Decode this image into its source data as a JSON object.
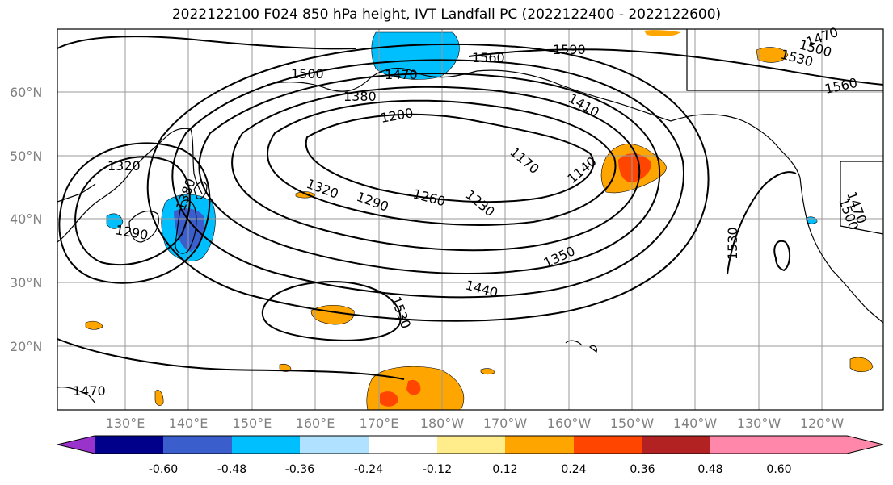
{
  "title": "2022122100 F024 850 hPa height, IVT Landfall PC (2022122400 - 2022122600)",
  "lat_labels": [
    "60°N",
    "50°N",
    "40°N",
    "30°N",
    "20°N"
  ],
  "lon_labels": [
    "130°E",
    "140°E",
    "150°E",
    "160°E",
    "170°E",
    "180°W",
    "170°W",
    "160°W",
    "150°W",
    "140°W",
    "130°W",
    "120°W"
  ],
  "contour_labels": [
    "1590",
    "1560",
    "1470",
    "1500",
    "1380",
    "1410",
    "1200",
    "1320",
    "1290",
    "1260",
    "1230",
    "1170",
    "1140",
    "1350",
    "1440",
    "1530",
    "1320",
    "1290",
    "1380",
    "1470",
    "1500",
    "1530",
    "1560",
    "1470",
    "1500",
    "1530",
    "1470"
  ],
  "colorbar": {
    "ticks": [
      "-0.60",
      "-0.48",
      "-0.36",
      "-0.24",
      "-0.12",
      "0.12",
      "0.24",
      "0.36",
      "0.48",
      "0.60"
    ],
    "colors": [
      "#9933cc",
      "#00008b",
      "#3a5fcd",
      "#00bfff",
      "#b0e2ff",
      "#ffffff",
      "#ffec8b",
      "#ffa500",
      "#ff4500",
      "#b22222",
      "#ff88aa"
    ]
  }
}
